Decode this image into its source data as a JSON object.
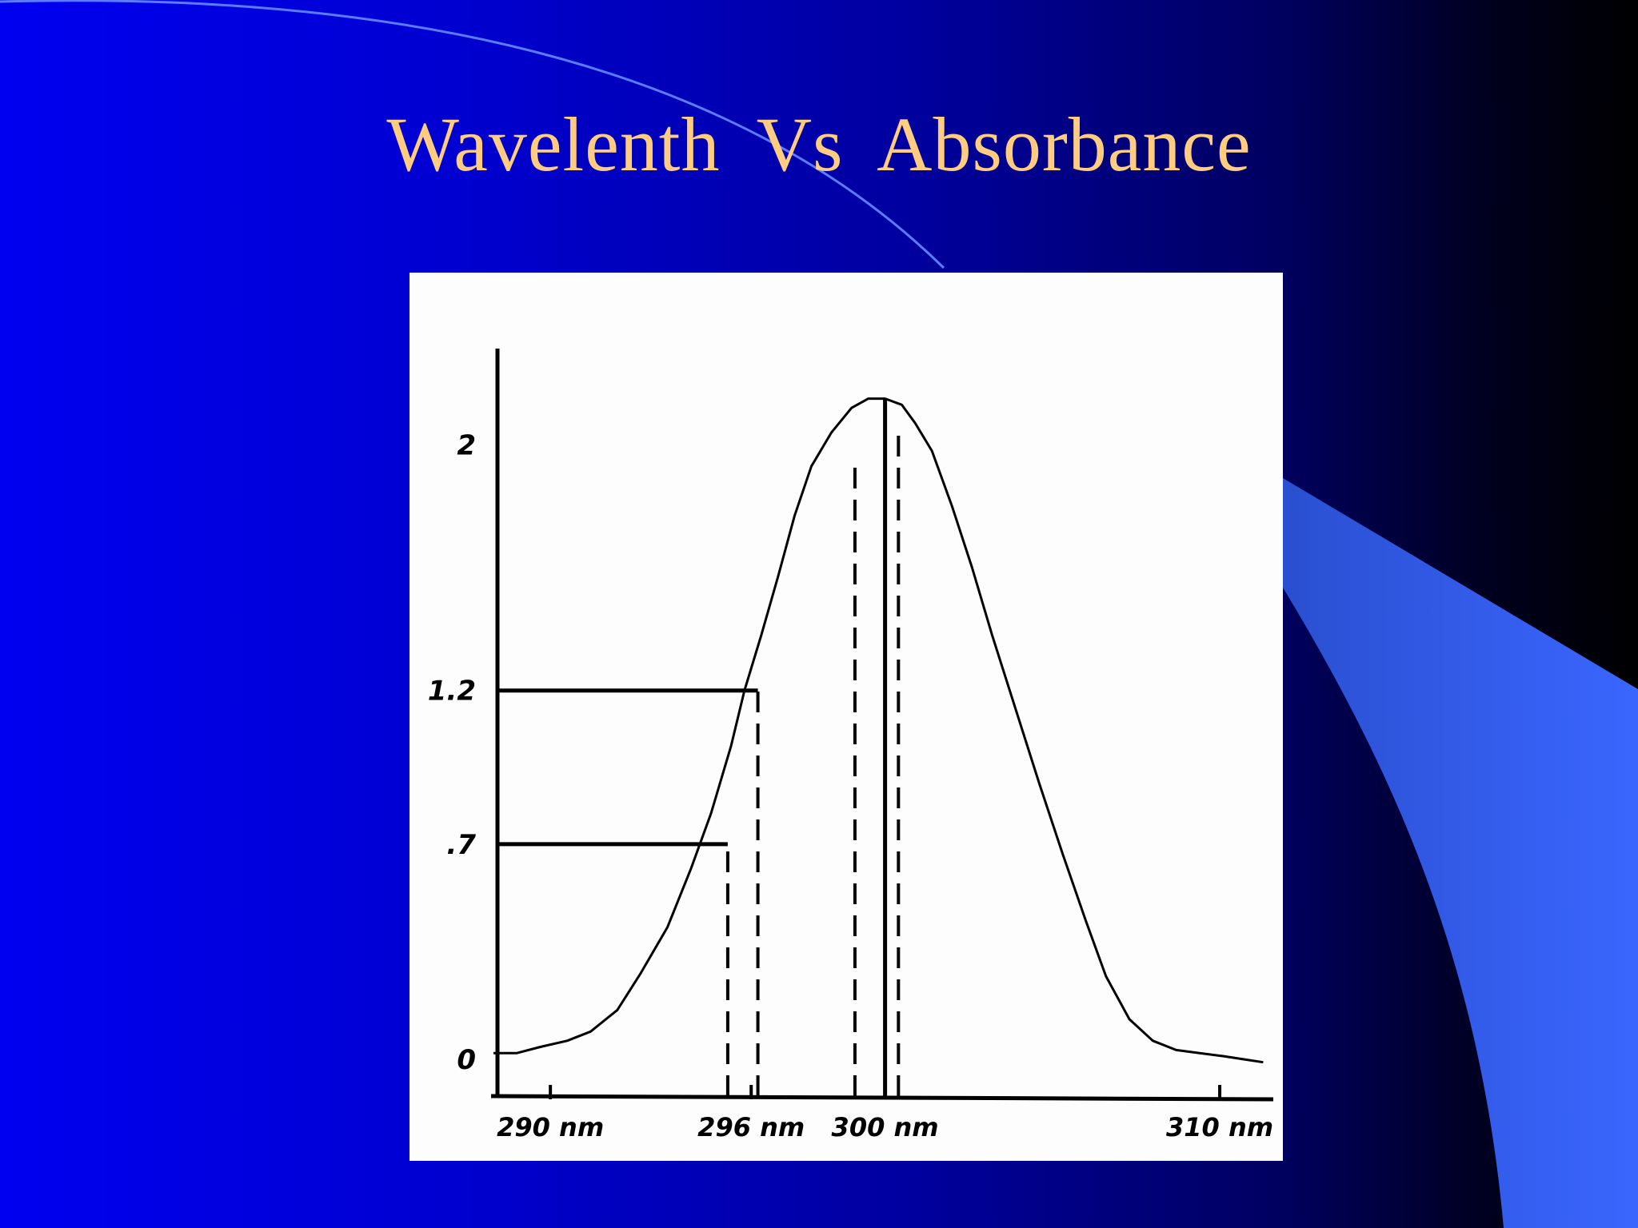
{
  "slide": {
    "title": "Wavelenth  Vs  Absorbance"
  },
  "colors": {
    "title": "#ffcc80",
    "accent_band": "#3366ff",
    "panel": "#fdfdfd",
    "ink": "#000000"
  },
  "chart_data": {
    "type": "line",
    "title": "Wavelenth  Vs  Absorbance",
    "xlabel": "",
    "ylabel": "",
    "xlim": [
      288.3,
      311.6
    ],
    "ylim": [
      -0.12,
      2.3
    ],
    "x_ticks": [
      {
        "value": 290,
        "label": "290 nm"
      },
      {
        "value": 296,
        "label": "296 nm"
      },
      {
        "value": 300,
        "label": "300 nm"
      },
      {
        "value": 310,
        "label": "310 nm"
      }
    ],
    "y_ticks": [
      {
        "value": 0,
        "label": "0"
      },
      {
        "value": 0.7,
        "label": ".7"
      },
      {
        "value": 1.2,
        "label": "1.2"
      },
      {
        "value": 2,
        "label": "2"
      }
    ],
    "series": [
      {
        "x": [
          288.3,
          289.0,
          289.7,
          290.5,
          291.2,
          292.0,
          292.7,
          293.5,
          294.2,
          294.8,
          295.4,
          295.8,
          296.3,
          296.8,
          297.3,
          297.8,
          298.4,
          299.0,
          299.5,
          300.0,
          300.5,
          300.9,
          301.4,
          302.0,
          302.6,
          303.2,
          303.9,
          304.6,
          305.3,
          306.0,
          306.6,
          307.3,
          308.0,
          308.7,
          309.4,
          310.1,
          310.7,
          311.3
        ],
        "y": [
          0.02,
          0.02,
          0.04,
          0.06,
          0.09,
          0.16,
          0.28,
          0.43,
          0.62,
          0.8,
          1.02,
          1.2,
          1.38,
          1.57,
          1.77,
          1.93,
          2.04,
          2.12,
          2.15,
          2.15,
          2.13,
          2.07,
          1.98,
          1.8,
          1.6,
          1.38,
          1.14,
          0.9,
          0.67,
          0.45,
          0.27,
          0.13,
          0.06,
          0.03,
          0.02,
          0.01,
          0.0,
          -0.01
        ]
      }
    ],
    "reference_lines": [
      {
        "type": "horizontal",
        "y": 1.2,
        "x_end": 296.2,
        "style": "solid"
      },
      {
        "type": "horizontal",
        "y": 0.7,
        "x_end": 295.3,
        "style": "solid"
      },
      {
        "type": "vertical",
        "x": 295.3,
        "y_end": 0.7,
        "style": "dashed"
      },
      {
        "type": "vertical",
        "x": 296.2,
        "y_end": 1.2,
        "style": "dashed"
      },
      {
        "type": "vertical",
        "x": 300.0,
        "y_end": 2.15,
        "style": "solid"
      },
      {
        "type": "vertical",
        "x": 299.1,
        "y_end": 1.95,
        "style": "dashed"
      },
      {
        "type": "vertical",
        "x": 300.4,
        "y_end": 2.05,
        "style": "dashed"
      }
    ],
    "grid": false,
    "legend": "none"
  }
}
